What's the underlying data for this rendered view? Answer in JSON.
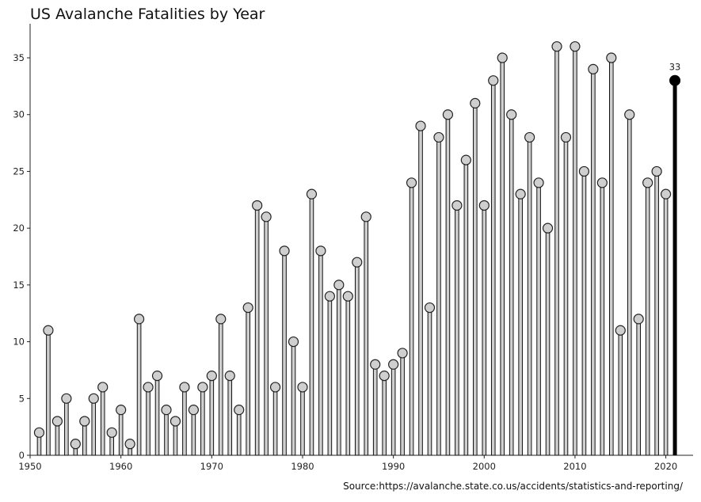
{
  "chart_data": {
    "type": "lollipop",
    "title": "US Avalanche Fatalities by Year",
    "xlabel": "",
    "ylabel": "",
    "xlim": [
      1950,
      2023
    ],
    "ylim": [
      0,
      38
    ],
    "x_ticks": [
      1950,
      1960,
      1970,
      1980,
      1990,
      2000,
      2010,
      2020
    ],
    "y_ticks": [
      0,
      5,
      10,
      15,
      20,
      25,
      30,
      35
    ],
    "grid": false,
    "years": [
      1951,
      1952,
      1953,
      1954,
      1955,
      1956,
      1957,
      1958,
      1959,
      1960,
      1961,
      1962,
      1963,
      1964,
      1965,
      1966,
      1967,
      1968,
      1969,
      1970,
      1971,
      1972,
      1973,
      1974,
      1975,
      1976,
      1977,
      1978,
      1979,
      1980,
      1981,
      1982,
      1983,
      1984,
      1985,
      1986,
      1987,
      1988,
      1989,
      1990,
      1991,
      1992,
      1993,
      1994,
      1995,
      1996,
      1997,
      1998,
      1999,
      2000,
      2001,
      2002,
      2003,
      2004,
      2005,
      2006,
      2007,
      2008,
      2009,
      2010,
      2011,
      2012,
      2013,
      2014,
      2015,
      2016,
      2017,
      2018,
      2019,
      2020,
      2021
    ],
    "values": [
      2,
      11,
      3,
      5,
      1,
      3,
      5,
      6,
      2,
      4,
      1,
      12,
      6,
      7,
      4,
      3,
      6,
      4,
      6,
      7,
      12,
      7,
      4,
      13,
      22,
      21,
      6,
      18,
      10,
      6,
      23,
      18,
      14,
      15,
      14,
      17,
      21,
      8,
      7,
      8,
      9,
      24,
      29,
      13,
      28,
      30,
      22,
      26,
      31,
      22,
      33,
      35,
      30,
      23,
      28,
      24,
      20,
      36,
      28,
      36,
      25,
      34,
      24,
      35,
      11,
      30,
      12,
      24,
      25,
      23,
      33
    ],
    "highlight": {
      "year": 2021,
      "value": 33,
      "label": "33"
    },
    "source": "Source:https://avalanche.state.co.us/accidents/statistics-and-reporting/"
  },
  "colors": {
    "stem_fill": "#cfcfcf",
    "stem_edge": "#111111",
    "marker_fill": "#cfcfcf",
    "marker_edge": "#222222",
    "highlight": "#000000",
    "axis": "#222222",
    "text": "#111111"
  }
}
